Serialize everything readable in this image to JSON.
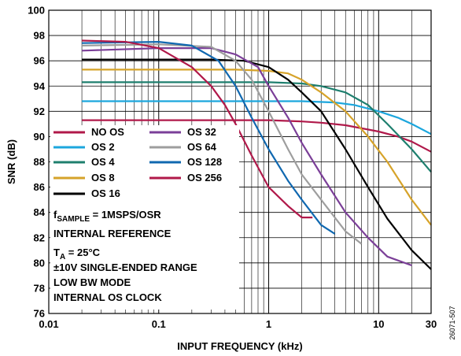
{
  "chart_data": {
    "type": "line",
    "xlabel": "INPUT FREQUENCY (kHz)",
    "ylabel": "SNR (dB)",
    "x_scale": "log",
    "xlim": [
      0.01,
      30
    ],
    "ylim": [
      76,
      100
    ],
    "x_ticks": [
      "0.01",
      "0.1",
      "1",
      "10",
      "30"
    ],
    "y_ticks": [
      "100",
      "98",
      "96",
      "94",
      "92",
      "90",
      "88",
      "86",
      "84",
      "82",
      "80",
      "78",
      "76"
    ],
    "grid": true,
    "legend_position": "lower-left",
    "series": [
      {
        "name": "NO OS",
        "color": "#b0194a",
        "x": [
          0.02,
          0.1,
          0.5,
          1,
          2,
          3,
          5,
          10,
          15,
          20,
          30
        ],
        "y": [
          91.3,
          91.3,
          91.3,
          91.3,
          91.2,
          91.1,
          90.9,
          90.4,
          90.0,
          89.6,
          88.8
        ]
      },
      {
        "name": "OS 2",
        "color": "#1ca6dd",
        "x": [
          0.02,
          0.1,
          0.5,
          1,
          2,
          4,
          6,
          10,
          15,
          20,
          30
        ],
        "y": [
          92.8,
          92.8,
          92.8,
          92.8,
          92.8,
          92.7,
          92.5,
          92.0,
          91.5,
          91.0,
          90.2
        ]
      },
      {
        "name": "OS 4",
        "color": "#1e7f6e",
        "x": [
          0.02,
          0.1,
          0.5,
          1,
          2,
          3,
          5,
          8,
          12,
          20,
          30
        ],
        "y": [
          94.3,
          94.3,
          94.3,
          94.3,
          94.2,
          94.0,
          93.5,
          92.5,
          91.0,
          89.0,
          87.2
        ]
      },
      {
        "name": "OS 8",
        "color": "#d6a32a",
        "x": [
          0.02,
          0.1,
          0.5,
          1,
          1.5,
          2,
          3,
          5,
          8,
          12,
          20,
          30
        ],
        "y": [
          95.3,
          95.3,
          95.3,
          95.2,
          95.0,
          94.5,
          93.5,
          92.0,
          90.0,
          88.0,
          85.0,
          83.0
        ]
      },
      {
        "name": "OS 16",
        "color": "#000000",
        "x": [
          0.02,
          0.1,
          0.3,
          0.6,
          1,
          1.5,
          2,
          3,
          5,
          8,
          12,
          20,
          30
        ],
        "y": [
          96.1,
          96.1,
          96.1,
          96.0,
          95.5,
          94.5,
          93.5,
          92.0,
          89.0,
          86.0,
          83.5,
          81.0,
          79.5
        ]
      },
      {
        "name": "OS 32",
        "color": "#7b3f98",
        "x": [
          0.02,
          0.1,
          0.3,
          0.5,
          0.8,
          1,
          1.5,
          2,
          3,
          5,
          8,
          12,
          20
        ],
        "y": [
          96.8,
          97.0,
          97.0,
          96.5,
          95.5,
          94.0,
          91.5,
          89.5,
          87.0,
          84.0,
          82.0,
          80.5,
          79.8
        ]
      },
      {
        "name": "OS 64",
        "color": "#9e9e9e",
        "x": [
          0.02,
          0.1,
          0.3,
          0.5,
          0.7,
          1,
          1.5,
          2,
          3,
          5,
          7
        ],
        "y": [
          97.2,
          97.3,
          97.1,
          96.0,
          94.5,
          92.0,
          89.0,
          87.0,
          85.0,
          82.5,
          81.5
        ]
      },
      {
        "name": "OS 128",
        "color": "#1068b0",
        "x": [
          0.02,
          0.1,
          0.2,
          0.35,
          0.5,
          0.7,
          1,
          1.5,
          2,
          3,
          4
        ],
        "y": [
          97.4,
          97.5,
          97.2,
          96.0,
          94.0,
          91.5,
          89.0,
          86.5,
          85.0,
          83.0,
          82.3
        ]
      },
      {
        "name": "OS 256",
        "color": "#b0194a",
        "x": [
          0.02,
          0.05,
          0.1,
          0.2,
          0.3,
          0.4,
          0.5,
          0.7,
          1,
          1.5,
          2,
          2.5
        ],
        "y": [
          97.6,
          97.5,
          97.0,
          95.5,
          94.0,
          92.5,
          91.0,
          88.5,
          86.0,
          84.5,
          83.6,
          83.6
        ]
      }
    ],
    "annotations": [
      {
        "main": "f",
        "sub": "SAMPLE",
        "rest": " = 1MSPS/OSR"
      },
      {
        "main": "INTERNAL REFERENCE",
        "sub": "",
        "rest": ""
      },
      {
        "main": "T",
        "sub": "A",
        "rest": " = 25°C"
      },
      {
        "main": "±10V SINGLE-ENDED RANGE",
        "sub": "",
        "rest": ""
      },
      {
        "main": "LOW BW MODE",
        "sub": "",
        "rest": ""
      },
      {
        "main": "INTERNAL OS CLOCK",
        "sub": "",
        "rest": ""
      }
    ],
    "figure_id": "26071-507"
  }
}
